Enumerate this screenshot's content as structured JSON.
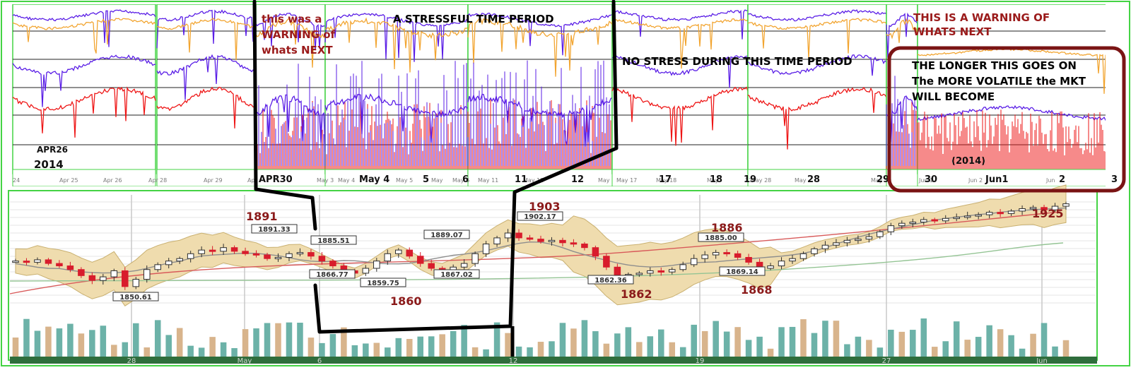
{
  "chart_data": [
    {
      "type": "line",
      "panel": "stress-indicator-strip",
      "series_colors": {
        "purple": "#5a1ee6",
        "orange": "#f2a531",
        "red": "#ee1616"
      },
      "date_labels": [
        "APR26",
        "2014",
        "APR30",
        "May 4",
        "5",
        "6",
        "11",
        "12",
        "17",
        "18",
        "19",
        "28",
        "29",
        "30",
        "Jun1",
        "2",
        "3",
        "(2014)"
      ],
      "small_tick_labels": [
        "24",
        "Apr 25",
        "Apr 26",
        "Apr",
        "28",
        "Apr 29",
        "Apr",
        "May 3",
        "May 4",
        "May 5",
        "May",
        "May 6",
        "May 11",
        "May 12",
        "May",
        "May 17",
        "May 18",
        "May",
        "27",
        "May 28",
        "May",
        "May 30",
        "Jun 1",
        "Jun 2",
        "Jun"
      ],
      "annotations": [
        {
          "id": "warning1",
          "text": "this was a WARNING of whats NEXT",
          "color": "#9b1b1b"
        },
        {
          "id": "stressful",
          "text": "A STRESSFUL TIME PERIOD",
          "color": "#000000"
        },
        {
          "id": "nostress",
          "text": "NO STRESS DURING THIS TIME PERIOD",
          "color": "#000000"
        },
        {
          "id": "warning2",
          "text": "THIS IS A WARNING OF WHATS NEXT",
          "color": "#9b1b1b"
        },
        {
          "id": "longer",
          "text": "THE LONGER THIS GOES ON The MORE VOLATILE the MKT WILL BECOME",
          "color": "#000000"
        }
      ]
    },
    {
      "type": "candlestick",
      "panel": "price-with-bollinger-bands",
      "colors": {
        "up": "#2f2f2f",
        "down": "#d81c2c",
        "band_fill": "#efdcae",
        "sma_long": "#d85a5a",
        "sma_green": "#94c494",
        "sma_mid": "#8e8e8e"
      },
      "ylim": [
        1843,
        1930
      ],
      "boxed_labels": [
        "1850.61",
        "1891.33",
        "1866.77",
        "1885.51",
        "1859.75",
        "1889.07",
        "1867.02",
        "1902.17",
        "1862.36",
        "1885.00",
        "1869.14"
      ],
      "annotations": [
        "1891",
        "1860",
        "1903",
        "1862",
        "1886",
        "1868",
        "1925"
      ],
      "x_axis_labels": [
        "28",
        "May",
        "6",
        "12",
        "19",
        "27",
        "Jun"
      ],
      "points": [
        {
          "x": 1,
          "y": 1878
        },
        {
          "x": 2,
          "y": 1877
        },
        {
          "x": 3,
          "y": 1879
        },
        {
          "x": 4,
          "y": 1876
        },
        {
          "x": 5,
          "y": 1874
        },
        {
          "x": 6,
          "y": 1871
        },
        {
          "x": 7,
          "y": 1866
        },
        {
          "x": 8,
          "y": 1862
        },
        {
          "x": 9,
          "y": 1865
        },
        {
          "x": 10,
          "y": 1870
        },
        {
          "x": 11,
          "y": 1857
        },
        {
          "x": 12,
          "y": 1863
        },
        {
          "x": 13,
          "y": 1871
        },
        {
          "x": 14,
          "y": 1875
        },
        {
          "x": 15,
          "y": 1878
        },
        {
          "x": 16,
          "y": 1880
        },
        {
          "x": 17,
          "y": 1884
        },
        {
          "x": 18,
          "y": 1887
        },
        {
          "x": 19,
          "y": 1886
        },
        {
          "x": 20,
          "y": 1889
        },
        {
          "x": 21,
          "y": 1886
        },
        {
          "x": 22,
          "y": 1884
        },
        {
          "x": 23,
          "y": 1883
        },
        {
          "x": 24,
          "y": 1880
        },
        {
          "x": 25,
          "y": 1881
        },
        {
          "x": 26,
          "y": 1884
        },
        {
          "x": 27,
          "y": 1885
        },
        {
          "x": 28,
          "y": 1882
        },
        {
          "x": 29,
          "y": 1878
        },
        {
          "x": 30,
          "y": 1874
        },
        {
          "x": 31,
          "y": 1870
        },
        {
          "x": 32,
          "y": 1868
        },
        {
          "x": 33,
          "y": 1872
        },
        {
          "x": 34,
          "y": 1878
        },
        {
          "x": 35,
          "y": 1884
        },
        {
          "x": 36,
          "y": 1887
        },
        {
          "x": 37,
          "y": 1882
        },
        {
          "x": 38,
          "y": 1876
        },
        {
          "x": 39,
          "y": 1872
        },
        {
          "x": 40,
          "y": 1870
        },
        {
          "x": 41,
          "y": 1873
        },
        {
          "x": 42,
          "y": 1876
        },
        {
          "x": 43,
          "y": 1884
        },
        {
          "x": 44,
          "y": 1892
        },
        {
          "x": 45,
          "y": 1897
        },
        {
          "x": 46,
          "y": 1901
        },
        {
          "x": 47,
          "y": 1897
        },
        {
          "x": 48,
          "y": 1896
        },
        {
          "x": 49,
          "y": 1894
        },
        {
          "x": 50,
          "y": 1895
        },
        {
          "x": 51,
          "y": 1893
        },
        {
          "x": 52,
          "y": 1892
        },
        {
          "x": 53,
          "y": 1889
        },
        {
          "x": 54,
          "y": 1882
        },
        {
          "x": 55,
          "y": 1873
        },
        {
          "x": 56,
          "y": 1866
        },
        {
          "x": 57,
          "y": 1867
        },
        {
          "x": 58,
          "y": 1868
        },
        {
          "x": 59,
          "y": 1870
        },
        {
          "x": 60,
          "y": 1869
        },
        {
          "x": 61,
          "y": 1871
        },
        {
          "x": 62,
          "y": 1875
        },
        {
          "x": 63,
          "y": 1880
        },
        {
          "x": 64,
          "y": 1883
        },
        {
          "x": 65,
          "y": 1885
        },
        {
          "x": 66,
          "y": 1884
        },
        {
          "x": 67,
          "y": 1881
        },
        {
          "x": 68,
          "y": 1877
        },
        {
          "x": 69,
          "y": 1872
        },
        {
          "x": 70,
          "y": 1874
        },
        {
          "x": 71,
          "y": 1878
        },
        {
          "x": 72,
          "y": 1880
        },
        {
          "x": 73,
          "y": 1884
        },
        {
          "x": 74,
          "y": 1888
        },
        {
          "x": 75,
          "y": 1891
        },
        {
          "x": 76,
          "y": 1893
        },
        {
          "x": 77,
          "y": 1895
        },
        {
          "x": 78,
          "y": 1896
        },
        {
          "x": 79,
          "y": 1898
        },
        {
          "x": 80,
          "y": 1902
        },
        {
          "x": 81,
          "y": 1907
        },
        {
          "x": 82,
          "y": 1909
        },
        {
          "x": 83,
          "y": 1910
        },
        {
          "x": 84,
          "y": 1912
        },
        {
          "x": 85,
          "y": 1911
        },
        {
          "x": 86,
          "y": 1913
        },
        {
          "x": 87,
          "y": 1914
        },
        {
          "x": 88,
          "y": 1915
        },
        {
          "x": 89,
          "y": 1916
        },
        {
          "x": 90,
          "y": 1918
        },
        {
          "x": 91,
          "y": 1917
        },
        {
          "x": 92,
          "y": 1919
        },
        {
          "x": 93,
          "y": 1921
        },
        {
          "x": 94,
          "y": 1922
        },
        {
          "x": 95,
          "y": 1920
        },
        {
          "x": 96,
          "y": 1923
        },
        {
          "x": 97,
          "y": 1925
        }
      ]
    }
  ]
}
